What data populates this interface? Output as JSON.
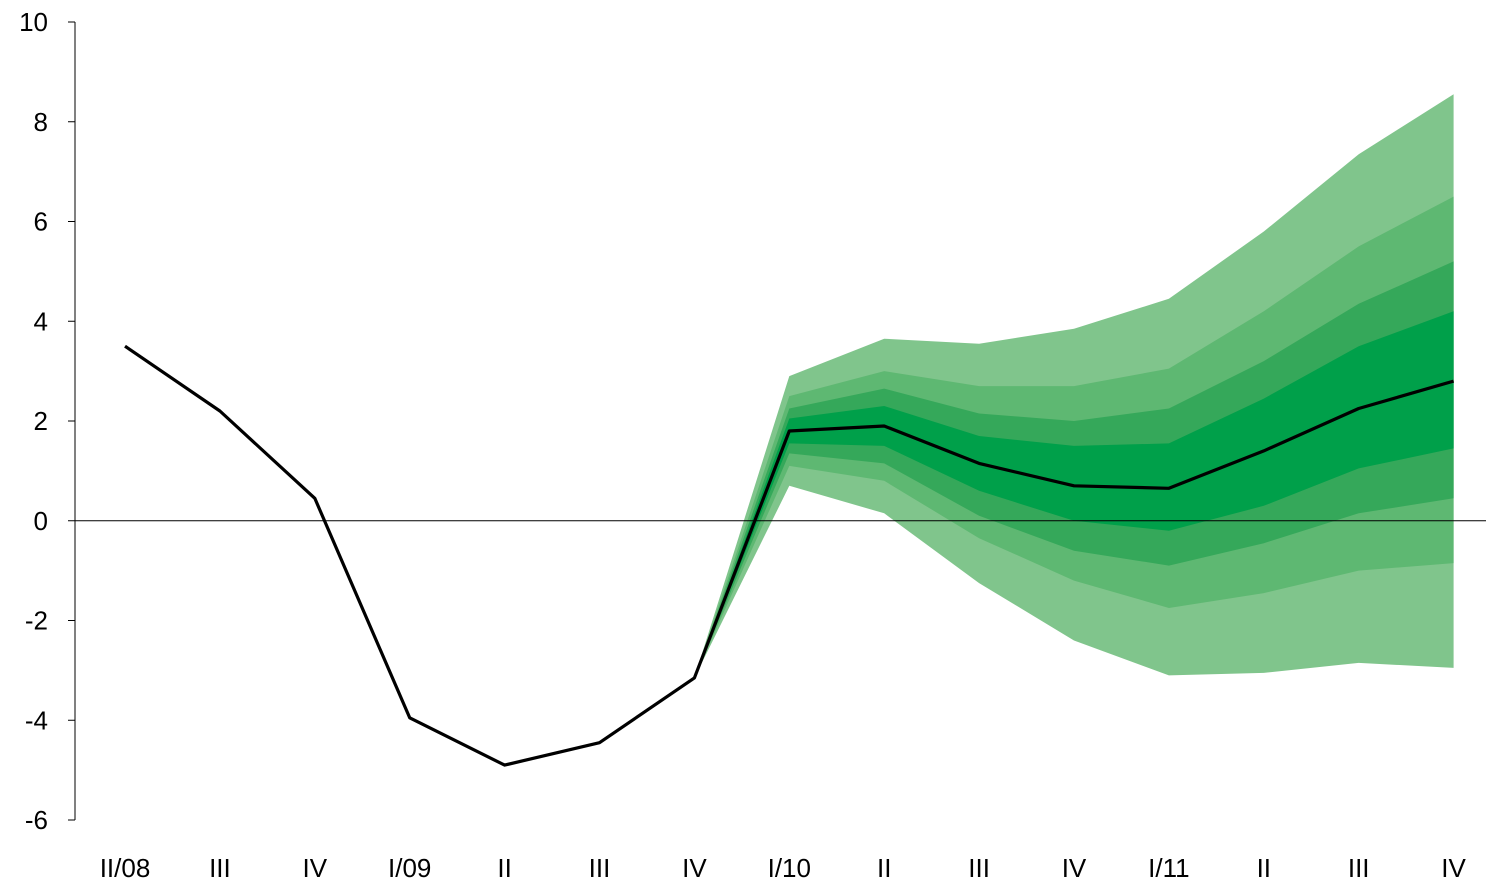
{
  "chart_data": {
    "type": "area",
    "title": "",
    "xlabel": "",
    "ylabel": "",
    "categories": [
      "II/08",
      "III",
      "IV",
      "I/09",
      "II",
      "III",
      "IV",
      "I/10",
      "II",
      "III",
      "IV",
      "I/11",
      "II",
      "III",
      "IV"
    ],
    "ylim": [
      -6,
      10
    ],
    "yticks": [
      "10",
      "8",
      "6",
      "4",
      "2",
      "0",
      "-2",
      "-4",
      "-6"
    ],
    "ytick_values": [
      10,
      8,
      6,
      4,
      2,
      0,
      -2,
      -4,
      -6
    ],
    "grid": false,
    "zero_line": true,
    "series": [
      {
        "values": [
          3.5,
          2.2,
          0.45,
          -3.95,
          -4.9,
          -4.45,
          -3.15,
          1.8,
          1.9,
          1.15,
          0.7,
          0.65,
          1.4,
          2.25,
          2.8
        ]
      }
    ],
    "fan_start_index": 6,
    "fan_bands": [
      {
        "color": "#80c58c",
        "upper": [
          -3.15,
          2.9,
          3.65,
          3.55,
          3.85,
          4.45,
          5.8,
          7.35,
          8.55
        ],
        "lower": [
          -3.15,
          0.7,
          0.15,
          -1.25,
          -2.4,
          -3.1,
          -3.05,
          -2.85,
          -2.95
        ]
      },
      {
        "color": "#5eb872",
        "upper": [
          -3.15,
          2.5,
          3.0,
          2.7,
          2.7,
          3.05,
          4.2,
          5.5,
          6.5
        ],
        "lower": [
          -3.15,
          1.1,
          0.8,
          -0.35,
          -1.2,
          -1.75,
          -1.45,
          -1.0,
          -0.85
        ]
      },
      {
        "color": "#35a85a",
        "upper": [
          -3.15,
          2.25,
          2.65,
          2.15,
          2.0,
          2.25,
          3.2,
          4.35,
          5.2
        ],
        "lower": [
          -3.15,
          1.35,
          1.15,
          0.1,
          -0.6,
          -0.9,
          -0.45,
          0.15,
          0.45
        ]
      },
      {
        "color": "#00a04a",
        "upper": [
          -3.15,
          2.05,
          2.3,
          1.7,
          1.5,
          1.55,
          2.45,
          3.5,
          4.2
        ],
        "lower": [
          -3.15,
          1.55,
          1.5,
          0.6,
          0.0,
          -0.2,
          0.3,
          1.05,
          1.45
        ]
      }
    ],
    "colors": {
      "line": "#000000",
      "axis": "#000000"
    }
  }
}
